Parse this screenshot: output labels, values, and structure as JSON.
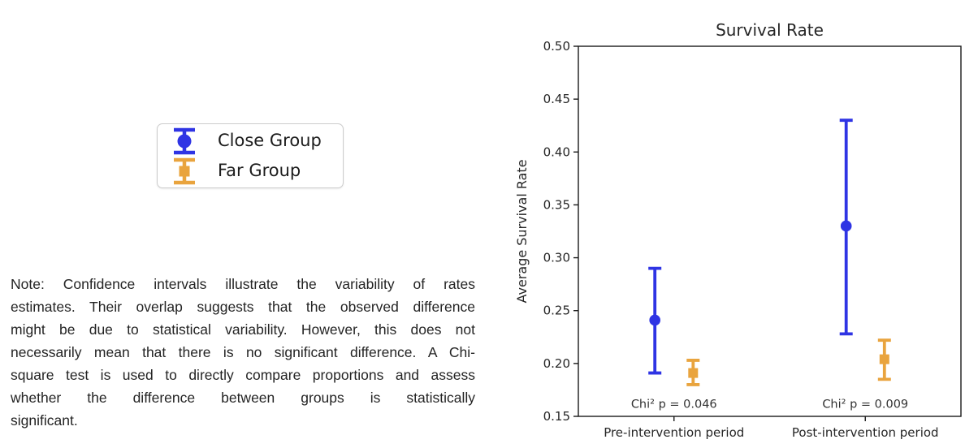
{
  "legend": {
    "items": [
      {
        "label": "Close Group",
        "color": "#2f34e4",
        "marker": "circle"
      },
      {
        "label": "Far Group",
        "color": "#e9a43e",
        "marker": "square"
      }
    ]
  },
  "note": {
    "lines": [
      "Note: Confidence intervals illustrate the variability of rates",
      "estimates. Their overlap suggests that the observed difference",
      "might be due to statistical variability. However, this does not",
      "necessarily mean that there is no significant difference. A Chi-",
      "square test is used to directly compare proportions and assess",
      "whether the difference between groups is statistically",
      "significant."
    ]
  },
  "chart_data": {
    "type": "scatter",
    "subtype": "errorbar",
    "title": "Survival Rate",
    "xlabel": "",
    "ylabel": "Average Survival Rate",
    "categories": [
      "Pre-intervention period",
      "Post-intervention period"
    ],
    "ylim": [
      0.15,
      0.5
    ],
    "yticks": [
      0.15,
      0.2,
      0.25,
      0.3,
      0.35,
      0.4,
      0.45,
      0.5
    ],
    "grid": false,
    "legend_position": "outside-left",
    "series": [
      {
        "name": "Close Group",
        "color": "#2f34e4",
        "marker": "circle",
        "values": [
          0.241,
          0.33
        ],
        "ci_low": [
          0.191,
          0.228
        ],
        "ci_high": [
          0.29,
          0.43
        ]
      },
      {
        "name": "Far Group",
        "color": "#e9a43e",
        "marker": "square",
        "values": [
          0.191,
          0.204
        ],
        "ci_low": [
          0.18,
          0.185
        ],
        "ci_high": [
          0.203,
          0.222
        ]
      }
    ],
    "annotations": [
      {
        "text": "Chi² p = 0.046",
        "category_index": 0,
        "y": 0.162
      },
      {
        "text": "Chi² p = 0.009",
        "category_index": 1,
        "y": 0.162
      }
    ],
    "text_color": "#262626",
    "axis_color": "#1a1a1a"
  }
}
